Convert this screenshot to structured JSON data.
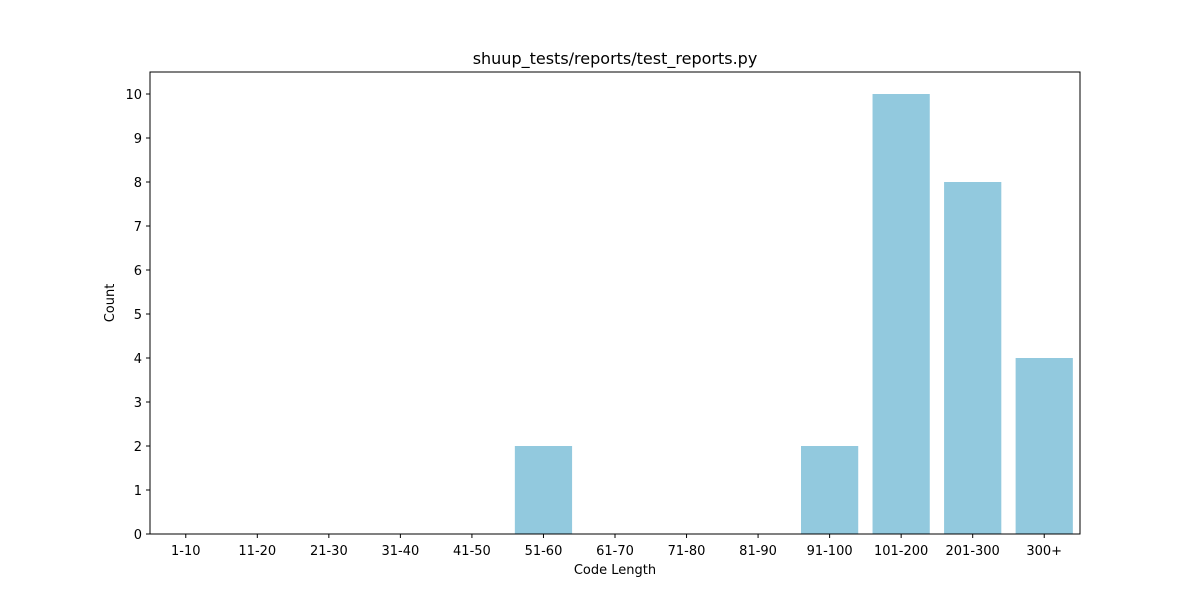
{
  "chart_data": {
    "type": "bar",
    "title": "shuup_tests/reports/test_reports.py",
    "xlabel": "Code Length",
    "ylabel": "Count",
    "categories": [
      "1-10",
      "11-20",
      "21-30",
      "31-40",
      "41-50",
      "51-60",
      "61-70",
      "71-80",
      "81-90",
      "91-100",
      "101-200",
      "201-300",
      "300+"
    ],
    "values": [
      0,
      0,
      0,
      0,
      0,
      2,
      0,
      0,
      0,
      2,
      10,
      8,
      4
    ],
    "ylim": [
      0,
      10.5
    ],
    "yticks": [
      0,
      1,
      2,
      3,
      4,
      5,
      6,
      7,
      8,
      9,
      10
    ],
    "bar_color": "#92c9de",
    "grid": false,
    "legend": "none"
  }
}
